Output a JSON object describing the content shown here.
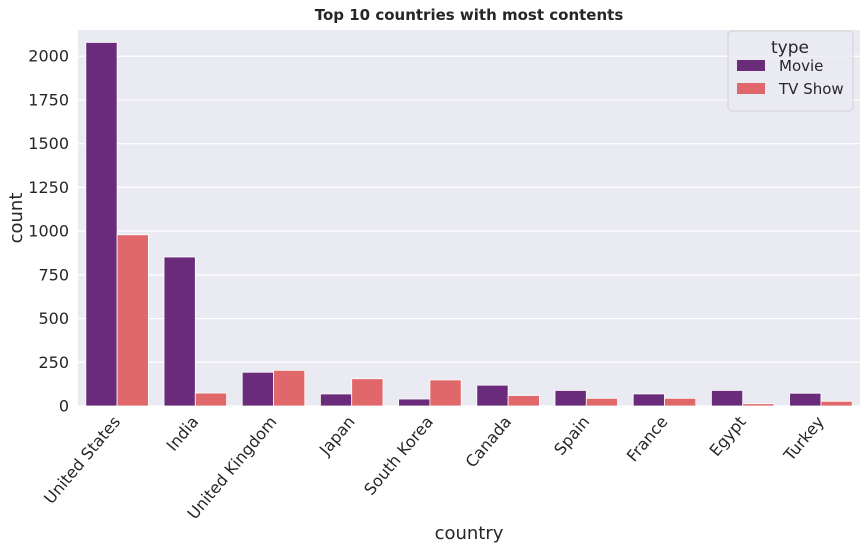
{
  "chart_data": {
    "type": "bar",
    "title": "Top 10 countries with most contents",
    "xlabel": "country",
    "ylabel": "count",
    "ylim": [
      0,
      2150
    ],
    "yticks": [
      0,
      250,
      500,
      750,
      1000,
      1250,
      1500,
      1750,
      2000
    ],
    "grid": true,
    "legend_title": "type",
    "legend_position": "top-right",
    "categories": [
      "United States",
      "India",
      "United Kingdom",
      "Japan",
      "South Korea",
      "Canada",
      "Spain",
      "France",
      "Egypt",
      "Turkey"
    ],
    "series": [
      {
        "name": "Movie",
        "color": "#6a2c7a",
        "values": [
          2079,
          852,
          193,
          69,
          40,
          119,
          89,
          69,
          89,
          73
        ]
      },
      {
        "name": "TV Show",
        "color": "#e0686a",
        "values": [
          979,
          74,
          204,
          156,
          149,
          60,
          44,
          44,
          13,
          27
        ]
      }
    ],
    "background_color": "#eaeaf2"
  }
}
